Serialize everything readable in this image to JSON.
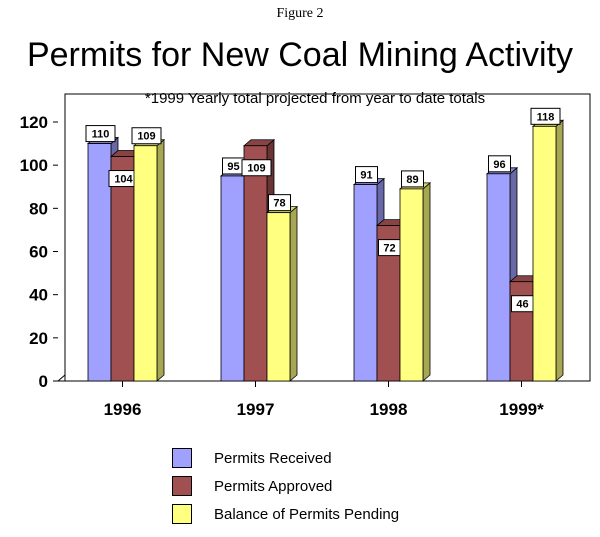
{
  "header": {
    "figure_label": "Figure 2",
    "title": "Permits for New Coal Mining Activity",
    "subtitle": "*1999 Yearly total projected from year to date totals"
  },
  "chart_data": {
    "type": "bar",
    "categories": [
      "1996",
      "1997",
      "1998",
      "1999*"
    ],
    "series": [
      {
        "name": "Permits Received",
        "values": [
          110,
          95,
          91,
          96
        ],
        "color": "#a0a0ff"
      },
      {
        "name": "Permits Approved",
        "values": [
          104,
          109,
          72,
          46
        ],
        "color": "#a05050"
      },
      {
        "name": "Balance of Permits Pending",
        "values": [
          109,
          78,
          89,
          118
        ],
        "color": "#ffff80"
      }
    ],
    "ylim": [
      0,
      120
    ],
    "yticks": [
      0,
      20,
      40,
      60,
      80,
      100,
      120
    ],
    "legend_position": "bottom",
    "grid": false
  }
}
